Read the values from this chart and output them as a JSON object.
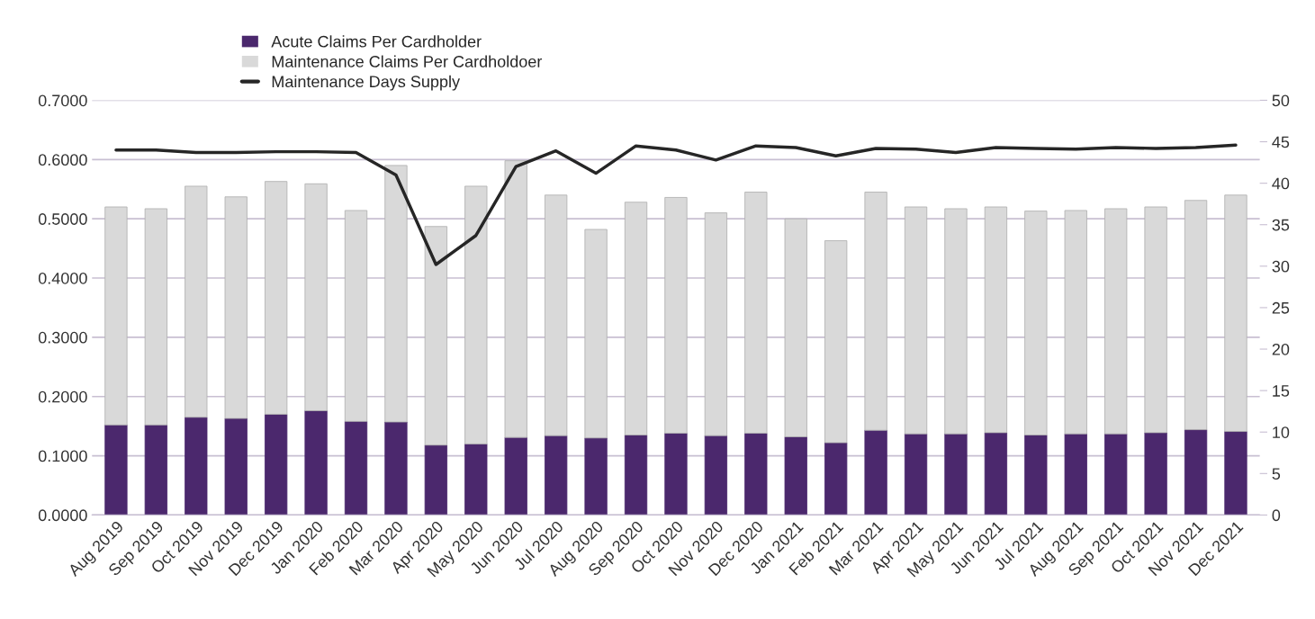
{
  "chart_data": {
    "type": "bar",
    "stacked": true,
    "grid": "y",
    "legend": "top left",
    "categories": [
      "Aug 2019",
      "Sep 2019",
      "Oct 2019",
      "Nov 2019",
      "Dec 2019",
      "Jan 2020",
      "Feb 2020",
      "Mar 2020",
      "Apr 2020",
      "May 2020",
      "Jun 2020",
      "Jul 2020",
      "Aug 2020",
      "Sep 2020",
      "Oct 2020",
      "Nov 2020",
      "Dec 2020",
      "Jan 2021",
      "Feb 2021",
      "Mar 2021",
      "Apr 2021",
      "May 2021",
      "Jun 2021",
      "Jul 2021",
      "Aug 2021",
      "Sep 2021",
      "Oct 2021",
      "Nov 2021",
      "Dec 2021"
    ],
    "series": [
      {
        "name": "Acute Claims Per Cardholder",
        "color": "#4b286d",
        "values": [
          0.152,
          0.152,
          0.165,
          0.163,
          0.17,
          0.176,
          0.158,
          0.157,
          0.118,
          0.12,
          0.131,
          0.134,
          0.13,
          0.135,
          0.138,
          0.134,
          0.138,
          0.132,
          0.122,
          0.143,
          0.137,
          0.137,
          0.139,
          0.135,
          0.137,
          0.137,
          0.139,
          0.144,
          0.141
        ]
      },
      {
        "name": "Maintenance Claims Per Cardholdoer",
        "color": "#d9d9d9",
        "values": [
          0.368,
          0.365,
          0.39,
          0.374,
          0.393,
          0.383,
          0.356,
          0.433,
          0.369,
          0.435,
          0.467,
          0.406,
          0.352,
          0.393,
          0.398,
          0.376,
          0.407,
          0.368,
          0.341,
          0.402,
          0.383,
          0.38,
          0.381,
          0.378,
          0.377,
          0.38,
          0.381,
          0.387,
          0.399
        ]
      },
      {
        "name": "Maintenance Days Supply",
        "type": "line",
        "axis": "y2",
        "color": "#262626",
        "values": [
          44.0,
          44.0,
          43.7,
          43.7,
          43.8,
          43.8,
          43.7,
          41.0,
          30.2,
          33.7,
          42.0,
          43.9,
          41.2,
          44.5,
          44.0,
          42.8,
          44.5,
          44.3,
          43.3,
          44.2,
          44.1,
          43.7,
          44.3,
          44.2,
          44.1,
          44.3,
          44.2,
          44.3,
          44.6
        ]
      }
    ],
    "ylim": [
      0,
      0.7
    ],
    "yticks": [
      {
        "value": 0,
        "label": "0.0000"
      },
      {
        "value": 0.1,
        "label": "0.1000"
      },
      {
        "value": 0.2,
        "label": "0.2000"
      },
      {
        "value": 0.3,
        "label": "0.3000"
      },
      {
        "value": 0.4,
        "label": "0.4000"
      },
      {
        "value": 0.5,
        "label": "0.5000"
      },
      {
        "value": 0.6,
        "label": "0.6000"
      },
      {
        "value": 0.7,
        "label": "0.7000"
      }
    ],
    "y2lim": [
      0,
      50
    ],
    "y2ticks": [
      0,
      5,
      10,
      15,
      20,
      25,
      30,
      35,
      40,
      45,
      50
    ]
  }
}
